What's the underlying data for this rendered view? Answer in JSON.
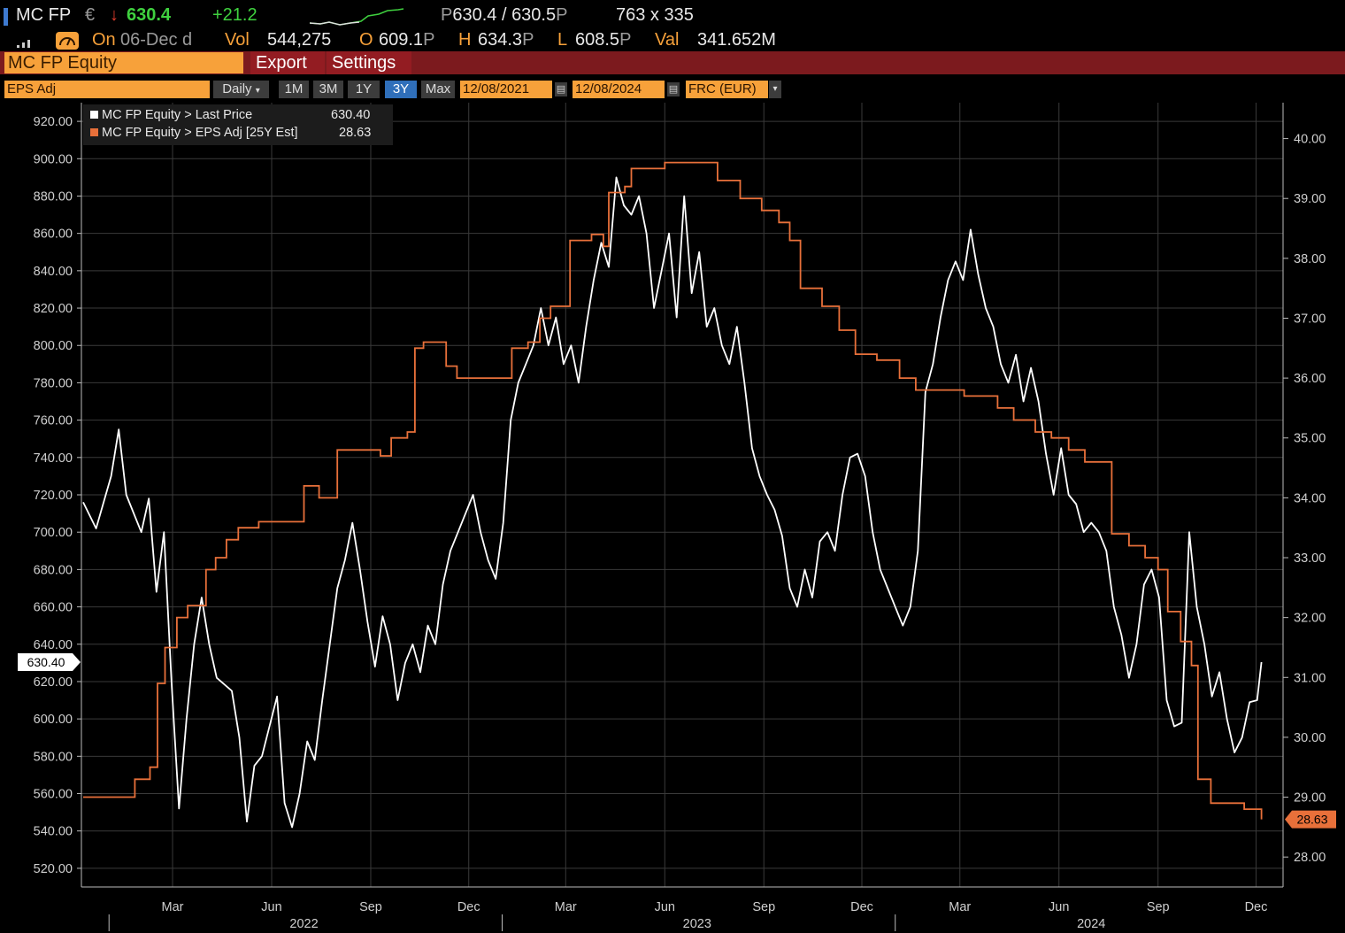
{
  "header": {
    "ticker": "MC FP",
    "currency": "€",
    "arrow": "↓",
    "last": "630.4",
    "change": "+21.2",
    "bid_ask_prefix": "P",
    "bid_ask": "630.4 / 630.5",
    "bid_ask_suffix": "P",
    "size": "763 x 335",
    "on_label": "On",
    "on_date": "06-Dec d",
    "vol_label": "Vol",
    "vol_value": "544,275",
    "open_label": "O",
    "open_value": "609.1",
    "open_suffix": "P",
    "high_label": "H",
    "high_value": "634.3",
    "high_suffix": "P",
    "low_label": "L",
    "low_value": "608.5",
    "low_suffix": "P",
    "val_label": "Val",
    "val_value": "341.652M"
  },
  "menubar": {
    "security": "MC FP Equity",
    "export": "Export",
    "settings": "Settings"
  },
  "toolbar": {
    "field": "EPS Adj",
    "frequency": "Daily",
    "ranges": [
      "1M",
      "3M",
      "1Y",
      "3Y",
      "Max"
    ],
    "selected_range": "3Y",
    "start_date": "12/08/2021",
    "end_date": "12/08/2024",
    "currency": "FRC (EUR)"
  },
  "legend": {
    "series1_label": "MC FP Equity > Last Price",
    "series1_value": "630.40",
    "series2_label": "MC FP Equity > EPS Adj [25Y Est]",
    "series2_value": "28.63"
  },
  "colors": {
    "price": "#ffffff",
    "eps": "#e8703a",
    "amber": "#f7a13a",
    "menu_red": "#7c1a1e",
    "grid": "#3a3a3a"
  },
  "chart_data": {
    "type": "line",
    "x_start": "2021-12-08",
    "x_end": "2024-12-08",
    "left_axis": {
      "ylim": [
        510,
        930
      ],
      "ticks": [
        "520.00",
        "540.00",
        "560.00",
        "580.00",
        "600.00",
        "620.00",
        "640.00",
        "660.00",
        "680.00",
        "700.00",
        "720.00",
        "740.00",
        "760.00",
        "780.00",
        "800.00",
        "820.00",
        "840.00",
        "860.00",
        "880.00",
        "900.00",
        "920.00"
      ],
      "last_label": "630.40"
    },
    "right_axis": {
      "ylim": [
        27.5,
        40.6
      ],
      "ticks": [
        "28.00",
        "29.00",
        "30.00",
        "31.00",
        "32.00",
        "33.00",
        "34.00",
        "35.00",
        "36.00",
        "37.00",
        "38.00",
        "39.00",
        "40.00"
      ],
      "last_label": "28.63"
    },
    "x_axis": {
      "month_ticks": [
        {
          "label": "Mar",
          "date": "2022-03-01"
        },
        {
          "label": "Jun",
          "date": "2022-06-01"
        },
        {
          "label": "Sep",
          "date": "2022-09-01"
        },
        {
          "label": "Dec",
          "date": "2022-12-01"
        },
        {
          "label": "Mar",
          "date": "2023-03-01"
        },
        {
          "label": "Jun",
          "date": "2023-06-01"
        },
        {
          "label": "Sep",
          "date": "2023-09-01"
        },
        {
          "label": "Dec",
          "date": "2023-12-01"
        },
        {
          "label": "Mar",
          "date": "2024-03-01"
        },
        {
          "label": "Jun",
          "date": "2024-06-01"
        },
        {
          "label": "Sep",
          "date": "2024-09-01"
        },
        {
          "label": "Dec",
          "date": "2024-12-01"
        }
      ],
      "year_labels": [
        {
          "label": "2022",
          "date": "2022-07-01"
        },
        {
          "label": "2023",
          "date": "2023-07-01"
        },
        {
          "label": "2024",
          "date": "2024-07-01"
        }
      ],
      "year_separators": [
        "2022-01-01",
        "2023-01-01",
        "2024-01-01"
      ]
    },
    "grid": true,
    "series": [
      {
        "name": "MC FP Equity > Last Price",
        "axis": "left",
        "points": [
          [
            "2021-12-08",
            716
          ],
          [
            "2021-12-20",
            702
          ],
          [
            "2022-01-03",
            730
          ],
          [
            "2022-01-10",
            755
          ],
          [
            "2022-01-17",
            720
          ],
          [
            "2022-01-31",
            700
          ],
          [
            "2022-02-07",
            718
          ],
          [
            "2022-02-14",
            668
          ],
          [
            "2022-02-21",
            700
          ],
          [
            "2022-02-28",
            620
          ],
          [
            "2022-03-07",
            552
          ],
          [
            "2022-03-14",
            600
          ],
          [
            "2022-03-21",
            640
          ],
          [
            "2022-03-28",
            665
          ],
          [
            "2022-04-04",
            640
          ],
          [
            "2022-04-11",
            622
          ],
          [
            "2022-04-25",
            615
          ],
          [
            "2022-05-02",
            590
          ],
          [
            "2022-05-09",
            545
          ],
          [
            "2022-05-16",
            575
          ],
          [
            "2022-05-23",
            580
          ],
          [
            "2022-06-06",
            612
          ],
          [
            "2022-06-13",
            555
          ],
          [
            "2022-06-20",
            542
          ],
          [
            "2022-06-27",
            560
          ],
          [
            "2022-07-04",
            588
          ],
          [
            "2022-07-11",
            578
          ],
          [
            "2022-07-18",
            610
          ],
          [
            "2022-07-25",
            640
          ],
          [
            "2022-08-01",
            670
          ],
          [
            "2022-08-08",
            685
          ],
          [
            "2022-08-15",
            705
          ],
          [
            "2022-08-22",
            680
          ],
          [
            "2022-08-29",
            652
          ],
          [
            "2022-09-05",
            628
          ],
          [
            "2022-09-12",
            655
          ],
          [
            "2022-09-19",
            640
          ],
          [
            "2022-09-26",
            610
          ],
          [
            "2022-10-03",
            630
          ],
          [
            "2022-10-10",
            640
          ],
          [
            "2022-10-17",
            625
          ],
          [
            "2022-10-24",
            650
          ],
          [
            "2022-10-31",
            640
          ],
          [
            "2022-11-07",
            672
          ],
          [
            "2022-11-14",
            690
          ],
          [
            "2022-11-21",
            700
          ],
          [
            "2022-11-28",
            710
          ],
          [
            "2022-12-05",
            720
          ],
          [
            "2022-12-12",
            700
          ],
          [
            "2022-12-19",
            685
          ],
          [
            "2022-12-26",
            675
          ],
          [
            "2023-01-02",
            705
          ],
          [
            "2023-01-09",
            760
          ],
          [
            "2023-01-16",
            780
          ],
          [
            "2023-01-23",
            790
          ],
          [
            "2023-01-30",
            800
          ],
          [
            "2023-02-06",
            820
          ],
          [
            "2023-02-13",
            800
          ],
          [
            "2023-02-20",
            815
          ],
          [
            "2023-02-27",
            790
          ],
          [
            "2023-03-06",
            800
          ],
          [
            "2023-03-13",
            780
          ],
          [
            "2023-03-20",
            810
          ],
          [
            "2023-03-27",
            835
          ],
          [
            "2023-04-03",
            855
          ],
          [
            "2023-04-10",
            842
          ],
          [
            "2023-04-17",
            890
          ],
          [
            "2023-04-24",
            875
          ],
          [
            "2023-05-01",
            870
          ],
          [
            "2023-05-08",
            880
          ],
          [
            "2023-05-15",
            860
          ],
          [
            "2023-05-22",
            820
          ],
          [
            "2023-05-29",
            840
          ],
          [
            "2023-06-05",
            860
          ],
          [
            "2023-06-12",
            815
          ],
          [
            "2023-06-19",
            880
          ],
          [
            "2023-06-26",
            828
          ],
          [
            "2023-07-03",
            850
          ],
          [
            "2023-07-10",
            810
          ],
          [
            "2023-07-17",
            820
          ],
          [
            "2023-07-24",
            800
          ],
          [
            "2023-07-31",
            790
          ],
          [
            "2023-08-07",
            810
          ],
          [
            "2023-08-14",
            780
          ],
          [
            "2023-08-21",
            745
          ],
          [
            "2023-08-28",
            730
          ],
          [
            "2023-09-04",
            720
          ],
          [
            "2023-09-11",
            712
          ],
          [
            "2023-09-18",
            698
          ],
          [
            "2023-09-25",
            670
          ],
          [
            "2023-10-02",
            660
          ],
          [
            "2023-10-09",
            680
          ],
          [
            "2023-10-16",
            665
          ],
          [
            "2023-10-23",
            695
          ],
          [
            "2023-10-30",
            700
          ],
          [
            "2023-11-06",
            690
          ],
          [
            "2023-11-13",
            720
          ],
          [
            "2023-11-20",
            740
          ],
          [
            "2023-11-27",
            742
          ],
          [
            "2023-12-04",
            730
          ],
          [
            "2023-12-11",
            700
          ],
          [
            "2023-12-18",
            680
          ],
          [
            "2023-12-25",
            670
          ],
          [
            "2024-01-01",
            660
          ],
          [
            "2024-01-08",
            650
          ],
          [
            "2024-01-15",
            660
          ],
          [
            "2024-01-22",
            690
          ],
          [
            "2024-01-29",
            775
          ],
          [
            "2024-02-05",
            790
          ],
          [
            "2024-02-12",
            815
          ],
          [
            "2024-02-19",
            835
          ],
          [
            "2024-02-26",
            845
          ],
          [
            "2024-03-04",
            835
          ],
          [
            "2024-03-11",
            862
          ],
          [
            "2024-03-18",
            838
          ],
          [
            "2024-03-25",
            820
          ],
          [
            "2024-04-01",
            810
          ],
          [
            "2024-04-08",
            790
          ],
          [
            "2024-04-15",
            780
          ],
          [
            "2024-04-22",
            795
          ],
          [
            "2024-04-29",
            770
          ],
          [
            "2024-05-06",
            788
          ],
          [
            "2024-05-13",
            770
          ],
          [
            "2024-05-20",
            742
          ],
          [
            "2024-05-27",
            720
          ],
          [
            "2024-06-03",
            745
          ],
          [
            "2024-06-10",
            720
          ],
          [
            "2024-06-17",
            715
          ],
          [
            "2024-06-24",
            700
          ],
          [
            "2024-07-01",
            705
          ],
          [
            "2024-07-08",
            700
          ],
          [
            "2024-07-15",
            690
          ],
          [
            "2024-07-22",
            660
          ],
          [
            "2024-07-29",
            645
          ],
          [
            "2024-08-05",
            622
          ],
          [
            "2024-08-12",
            640
          ],
          [
            "2024-08-19",
            672
          ],
          [
            "2024-08-26",
            680
          ],
          [
            "2024-09-02",
            665
          ],
          [
            "2024-09-09",
            610
          ],
          [
            "2024-09-16",
            596
          ],
          [
            "2024-09-23",
            598
          ],
          [
            "2024-09-30",
            700
          ],
          [
            "2024-10-07",
            660
          ],
          [
            "2024-10-14",
            640
          ],
          [
            "2024-10-21",
            612
          ],
          [
            "2024-10-28",
            625
          ],
          [
            "2024-11-04",
            600
          ],
          [
            "2024-11-11",
            582
          ],
          [
            "2024-11-18",
            590
          ],
          [
            "2024-11-25",
            609
          ],
          [
            "2024-12-02",
            610
          ],
          [
            "2024-12-06",
            630.4
          ]
        ]
      },
      {
        "name": "MC FP Equity > EPS Adj [25Y Est]",
        "axis": "right",
        "points": [
          [
            "2021-12-08",
            29.0
          ],
          [
            "2022-01-15",
            29.0
          ],
          [
            "2022-01-25",
            29.3
          ],
          [
            "2022-02-08",
            29.5
          ],
          [
            "2022-02-15",
            30.9
          ],
          [
            "2022-02-22",
            31.5
          ],
          [
            "2022-03-05",
            32.0
          ],
          [
            "2022-03-15",
            32.2
          ],
          [
            "2022-04-01",
            32.8
          ],
          [
            "2022-04-10",
            33.0
          ],
          [
            "2022-04-20",
            33.3
          ],
          [
            "2022-05-01",
            33.5
          ],
          [
            "2022-05-20",
            33.6
          ],
          [
            "2022-06-10",
            33.6
          ],
          [
            "2022-07-01",
            34.2
          ],
          [
            "2022-07-15",
            34.0
          ],
          [
            "2022-08-01",
            34.8
          ],
          [
            "2022-08-20",
            34.8
          ],
          [
            "2022-09-10",
            34.7
          ],
          [
            "2022-09-20",
            35.0
          ],
          [
            "2022-10-05",
            35.1
          ],
          [
            "2022-10-12",
            36.5
          ],
          [
            "2022-10-20",
            36.6
          ],
          [
            "2022-11-10",
            36.2
          ],
          [
            "2022-11-20",
            36.0
          ],
          [
            "2023-01-05",
            36.0
          ],
          [
            "2023-01-10",
            36.5
          ],
          [
            "2023-01-25",
            36.6
          ],
          [
            "2023-02-05",
            37.0
          ],
          [
            "2023-02-15",
            37.2
          ],
          [
            "2023-03-05",
            38.3
          ],
          [
            "2023-03-25",
            38.4
          ],
          [
            "2023-04-05",
            38.2
          ],
          [
            "2023-04-10",
            39.1
          ],
          [
            "2023-04-25",
            39.2
          ],
          [
            "2023-05-01",
            39.5
          ],
          [
            "2023-05-15",
            39.5
          ],
          [
            "2023-06-01",
            39.6
          ],
          [
            "2023-06-20",
            39.6
          ],
          [
            "2023-07-05",
            39.6
          ],
          [
            "2023-07-20",
            39.3
          ],
          [
            "2023-08-10",
            39.0
          ],
          [
            "2023-08-30",
            38.8
          ],
          [
            "2023-09-15",
            38.6
          ],
          [
            "2023-09-25",
            38.3
          ],
          [
            "2023-10-05",
            37.5
          ],
          [
            "2023-10-25",
            37.2
          ],
          [
            "2023-11-10",
            36.8
          ],
          [
            "2023-11-25",
            36.4
          ],
          [
            "2023-12-15",
            36.3
          ],
          [
            "2024-01-05",
            36.0
          ],
          [
            "2024-01-20",
            35.8
          ],
          [
            "2024-02-05",
            35.8
          ],
          [
            "2024-02-20",
            35.8
          ],
          [
            "2024-03-05",
            35.7
          ],
          [
            "2024-03-20",
            35.7
          ],
          [
            "2024-04-05",
            35.5
          ],
          [
            "2024-04-20",
            35.3
          ],
          [
            "2024-05-10",
            35.1
          ],
          [
            "2024-05-25",
            35.0
          ],
          [
            "2024-06-10",
            34.8
          ],
          [
            "2024-06-25",
            34.6
          ],
          [
            "2024-07-10",
            34.6
          ],
          [
            "2024-07-20",
            33.4
          ],
          [
            "2024-08-05",
            33.2
          ],
          [
            "2024-08-20",
            33.0
          ],
          [
            "2024-09-01",
            32.8
          ],
          [
            "2024-09-10",
            32.1
          ],
          [
            "2024-09-22",
            31.6
          ],
          [
            "2024-10-02",
            31.2
          ],
          [
            "2024-10-08",
            29.3
          ],
          [
            "2024-10-20",
            28.9
          ],
          [
            "2024-11-05",
            28.9
          ],
          [
            "2024-11-20",
            28.8
          ],
          [
            "2024-12-06",
            28.63
          ]
        ]
      }
    ]
  }
}
